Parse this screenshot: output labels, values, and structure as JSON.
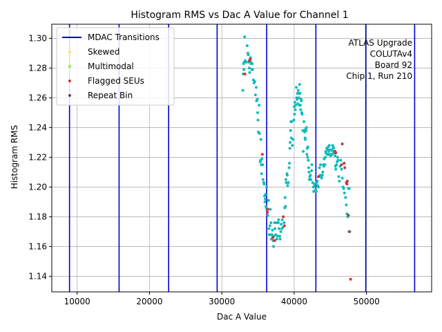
{
  "chart_data": {
    "type": "scatter",
    "title": "Histogram RMS vs Dac A Value for Channel 1",
    "xlabel": "Dac A Value",
    "ylabel": "Histogram RMS",
    "xlim": [
      6500,
      59000
    ],
    "ylim": [
      1.1295,
      1.3095
    ],
    "xticks": [
      10000,
      20000,
      30000,
      40000,
      50000
    ],
    "yticks": [
      1.14,
      1.16,
      1.18,
      1.2,
      1.22,
      1.24,
      1.26,
      1.28,
      1.3
    ],
    "x_tick_labels": [
      "10000",
      "20000",
      "30000",
      "40000",
      "50000"
    ],
    "y_tick_labels": [
      "1.14",
      "1.16",
      "1.18",
      "1.20",
      "1.22",
      "1.24",
      "1.26",
      "1.28",
      "1.30"
    ],
    "grid": true,
    "legend_position": "top-left",
    "annotation_lines": [
      "ATLAS Upgrade",
      "COLUTAv4",
      "Board 92",
      "Chip 1, Run 210"
    ],
    "mdac_transitions": [
      8950,
      15800,
      22650,
      29350,
      36200,
      43000,
      49900,
      56650
    ],
    "legend": [
      {
        "label": "MDAC Transitions",
        "kind": "line",
        "color": "#0000cc"
      },
      {
        "label": "Skewed",
        "kind": "point",
        "color": "#ffee33"
      },
      {
        "label": "Multimodal",
        "kind": "point",
        "color": "#88ee33"
      },
      {
        "label": "Flagged SEUs",
        "kind": "point",
        "color": "#cc3333"
      },
      {
        "label": "Repeat Bin",
        "kind": "point",
        "color": "#882288"
      }
    ],
    "colors": {
      "normal": "#11bbbb",
      "flagged": "#cc3333",
      "mdac": "#0000cc",
      "grid": "#b0b0b0"
    },
    "series": [
      {
        "name": "",
        "color": "#11bbbb",
        "points": [
          [
            32900,
            1.265
          ],
          [
            32950,
            1.276
          ],
          [
            33000,
            1.283
          ],
          [
            33050,
            1.279
          ],
          [
            33100,
            1.284
          ],
          [
            33150,
            1.301
          ],
          [
            33250,
            1.285
          ],
          [
            33350,
            1.284
          ],
          [
            33500,
            1.295
          ],
          [
            33600,
            1.29
          ],
          [
            33650,
            1.289
          ],
          [
            33700,
            1.284
          ],
          [
            33800,
            1.28
          ],
          [
            33850,
            1.277
          ],
          [
            33950,
            1.287
          ],
          [
            34000,
            1.284
          ],
          [
            34050,
            1.283
          ],
          [
            34150,
            1.279
          ],
          [
            34200,
            1.283
          ],
          [
            34250,
            1.279
          ],
          [
            34350,
            1.272
          ],
          [
            34450,
            1.27
          ],
          [
            34550,
            1.271
          ],
          [
            34650,
            1.262
          ],
          [
            34750,
            1.267
          ],
          [
            34800,
            1.258
          ],
          [
            34900,
            1.259
          ],
          [
            34950,
            1.25
          ],
          [
            35000,
            1.245
          ],
          [
            35050,
            1.237
          ],
          [
            35150,
            1.255
          ],
          [
            35200,
            1.236
          ],
          [
            35300,
            1.217
          ],
          [
            35350,
            1.218
          ],
          [
            35400,
            1.232
          ],
          [
            35450,
            1.215
          ],
          [
            35500,
            1.209
          ],
          [
            35550,
            1.219
          ],
          [
            35650,
            1.215
          ],
          [
            35700,
            1.205
          ],
          [
            35800,
            1.203
          ],
          [
            35850,
            1.202
          ],
          [
            35900,
            1.194
          ],
          [
            35950,
            1.19
          ],
          [
            36000,
            1.192
          ],
          [
            36050,
            1.195
          ],
          [
            36100,
            1.187
          ],
          [
            36150,
            1.186
          ],
          [
            36200,
            1.2
          ],
          [
            36350,
            1.181
          ],
          [
            36450,
            1.191
          ],
          [
            36500,
            1.172
          ],
          [
            36550,
            1.168
          ],
          [
            36600,
            1.168
          ],
          [
            36650,
            1.174
          ],
          [
            36700,
            1.185
          ],
          [
            36800,
            1.176
          ],
          [
            36850,
            1.165
          ],
          [
            36900,
            1.168
          ],
          [
            37000,
            1.171
          ],
          [
            37050,
            1.167
          ],
          [
            37100,
            1.164
          ],
          [
            37150,
            1.16
          ],
          [
            37200,
            1.167
          ],
          [
            37300,
            1.176
          ],
          [
            37350,
            1.172
          ],
          [
            37450,
            1.168
          ],
          [
            37550,
            1.176
          ],
          [
            37600,
            1.165
          ],
          [
            37700,
            1.167
          ],
          [
            37800,
            1.176
          ],
          [
            37850,
            1.178
          ],
          [
            37900,
            1.172
          ],
          [
            38000,
            1.167
          ],
          [
            38050,
            1.165
          ],
          [
            38150,
            1.17
          ],
          [
            38200,
            1.175
          ],
          [
            38300,
            1.172
          ],
          [
            38350,
            1.178
          ],
          [
            38450,
            1.173
          ],
          [
            38600,
            1.176
          ],
          [
            38700,
            1.186
          ],
          [
            38750,
            1.193
          ],
          [
            38800,
            1.187
          ],
          [
            38850,
            1.205
          ],
          [
            38900,
            1.203
          ],
          [
            39000,
            1.209
          ],
          [
            39050,
            1.208
          ],
          [
            39100,
            1.201
          ],
          [
            39200,
            1.203
          ],
          [
            39300,
            1.213
          ],
          [
            39350,
            1.216
          ],
          [
            39400,
            1.226
          ],
          [
            39450,
            1.23
          ],
          [
            39500,
            1.238
          ],
          [
            39550,
            1.244
          ],
          [
            39600,
            1.233
          ],
          [
            39650,
            1.244
          ],
          [
            39750,
            1.228
          ],
          [
            39850,
            1.232
          ],
          [
            39950,
            1.245
          ],
          [
            40000,
            1.254
          ],
          [
            40050,
            1.249
          ],
          [
            40100,
            1.257
          ],
          [
            40150,
            1.252
          ],
          [
            40200,
            1.255
          ],
          [
            40300,
            1.267
          ],
          [
            40350,
            1.26
          ],
          [
            40400,
            1.259
          ],
          [
            40450,
            1.263
          ],
          [
            40500,
            1.256
          ],
          [
            40550,
            1.265
          ],
          [
            40600,
            1.263
          ],
          [
            40650,
            1.26
          ],
          [
            40700,
            1.255
          ],
          [
            40750,
            1.269
          ],
          [
            40800,
            1.263
          ],
          [
            40850,
            1.255
          ],
          [
            40900,
            1.252
          ],
          [
            40950,
            1.259
          ],
          [
            41000,
            1.258
          ],
          [
            41050,
            1.25
          ],
          [
            41100,
            1.249
          ],
          [
            41200,
            1.238
          ],
          [
            41250,
            1.224
          ],
          [
            41300,
            1.238
          ],
          [
            41350,
            1.244
          ],
          [
            41450,
            1.237
          ],
          [
            41500,
            1.233
          ],
          [
            41550,
            1.232
          ],
          [
            41600,
            1.239
          ],
          [
            41650,
            1.238
          ],
          [
            41700,
            1.24
          ],
          [
            41750,
            1.222
          ],
          [
            41800,
            1.226
          ],
          [
            41850,
            1.22
          ],
          [
            41900,
            1.227
          ],
          [
            41950,
            1.218
          ],
          [
            42000,
            1.213
          ],
          [
            42050,
            1.21
          ],
          [
            42100,
            1.205
          ],
          [
            42150,
            1.207
          ],
          [
            42250,
            1.208
          ],
          [
            42300,
            1.205
          ],
          [
            42400,
            1.211
          ],
          [
            42450,
            1.215
          ],
          [
            42550,
            1.203
          ],
          [
            42650,
            1.2
          ],
          [
            42700,
            1.197
          ],
          [
            42800,
            1.202
          ],
          [
            42850,
            1.201
          ],
          [
            42950,
            1.198
          ],
          [
            43050,
            1.197
          ],
          [
            43100,
            1.203
          ],
          [
            43200,
            1.204
          ],
          [
            43250,
            1.201
          ],
          [
            43350,
            1.2
          ],
          [
            43400,
            1.207
          ],
          [
            43500,
            1.213
          ],
          [
            43600,
            1.208
          ],
          [
            43650,
            1.215
          ],
          [
            43750,
            1.207
          ],
          [
            43800,
            1.206
          ],
          [
            43900,
            1.208
          ],
          [
            43950,
            1.21
          ],
          [
            44050,
            1.215
          ],
          [
            44100,
            1.214
          ],
          [
            44150,
            1.219
          ],
          [
            44250,
            1.215
          ],
          [
            44300,
            1.22
          ],
          [
            44350,
            1.224
          ],
          [
            44400,
            1.223
          ],
          [
            44500,
            1.226
          ],
          [
            44550,
            1.222
          ],
          [
            44650,
            1.225
          ],
          [
            44700,
            1.227
          ],
          [
            44750,
            1.222
          ],
          [
            44800,
            1.224
          ],
          [
            44850,
            1.228
          ],
          [
            44950,
            1.225
          ],
          [
            45000,
            1.222
          ],
          [
            45050,
            1.221
          ],
          [
            45150,
            1.225
          ],
          [
            45250,
            1.222
          ],
          [
            45300,
            1.228
          ],
          [
            45350,
            1.224
          ],
          [
            45400,
            1.227
          ],
          [
            45450,
            1.226
          ],
          [
            45550,
            1.223
          ],
          [
            45650,
            1.221
          ],
          [
            45700,
            1.214
          ],
          [
            45750,
            1.212
          ],
          [
            45850,
            1.215
          ],
          [
            45950,
            1.217
          ],
          [
            46000,
            1.22
          ],
          [
            46050,
            1.218
          ],
          [
            46150,
            1.207
          ],
          [
            46250,
            1.204
          ],
          [
            46350,
            1.214
          ],
          [
            46450,
            1.218
          ],
          [
            46550,
            1.212
          ],
          [
            46650,
            1.206
          ],
          [
            46750,
            1.2
          ],
          [
            46850,
            1.199
          ],
          [
            46950,
            1.196
          ],
          [
            47100,
            1.193
          ],
          [
            47200,
            1.188
          ],
          [
            47300,
            1.182
          ],
          [
            47400,
            1.18
          ],
          [
            47500,
            1.199
          ],
          [
            47600,
            1.199
          ],
          [
            47700,
            1.17
          ]
        ]
      },
      {
        "name": "Flagged SEUs",
        "color": "#cc3333",
        "points": [
          [
            33200,
            1.276
          ],
          [
            33800,
            1.285
          ],
          [
            33950,
            1.286
          ],
          [
            35600,
            1.222
          ],
          [
            36300,
            1.183
          ],
          [
            36350,
            1.185
          ],
          [
            37050,
            1.166
          ],
          [
            37300,
            1.164
          ],
          [
            38500,
            1.18
          ],
          [
            38650,
            1.174
          ],
          [
            43350,
            1.207
          ],
          [
            45650,
            1.224
          ],
          [
            45750,
            1.223
          ],
          [
            46550,
            1.215
          ],
          [
            46650,
            1.229
          ],
          [
            46900,
            1.216
          ],
          [
            47000,
            1.213
          ],
          [
            47200,
            1.203
          ],
          [
            47300,
            1.202
          ],
          [
            47350,
            1.204
          ],
          [
            47500,
            1.181
          ],
          [
            47600,
            1.17
          ],
          [
            47800,
            1.138
          ]
        ]
      }
    ]
  }
}
